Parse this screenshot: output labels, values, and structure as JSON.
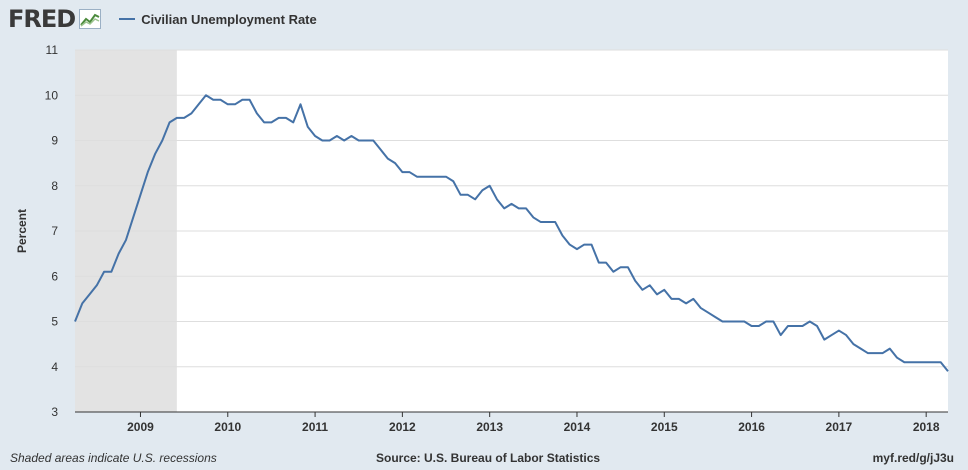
{
  "header": {
    "logo_text": "FRED",
    "logo_icon": "trend-chart-icon",
    "legend_label": "Civilian Unemployment Rate"
  },
  "footer": {
    "recession_note": "Shaded areas indicate U.S. recessions",
    "source": "Source: U.S. Bureau of Labor Statistics",
    "short_url": "myf.red/g/jJ3u"
  },
  "colors": {
    "line": "#4572a7",
    "recession": "#e3e3e3",
    "grid": "#dedede",
    "background": "#e1e9f0",
    "plot": "#ffffff"
  },
  "chart_data": {
    "type": "line",
    "title": "",
    "xlabel": "",
    "ylabel": "Percent",
    "ylim": [
      3,
      11
    ],
    "yticks": [
      3,
      4,
      5,
      6,
      7,
      8,
      9,
      10,
      11
    ],
    "xticks": [
      "2009",
      "2010",
      "2011",
      "2012",
      "2013",
      "2014",
      "2015",
      "2016",
      "2017",
      "2018"
    ],
    "x_start": "2008-04",
    "x_end": "2018-04",
    "grid": true,
    "legend_position": "top-left",
    "recession_shading": [
      {
        "start": "2008-04",
        "end": "2009-06"
      }
    ],
    "series": [
      {
        "name": "Civilian Unemployment Rate",
        "x": [
          "2008-04",
          "2008-05",
          "2008-06",
          "2008-07",
          "2008-08",
          "2008-09",
          "2008-10",
          "2008-11",
          "2008-12",
          "2009-01",
          "2009-02",
          "2009-03",
          "2009-04",
          "2009-05",
          "2009-06",
          "2009-07",
          "2009-08",
          "2009-09",
          "2009-10",
          "2009-11",
          "2009-12",
          "2010-01",
          "2010-02",
          "2010-03",
          "2010-04",
          "2010-05",
          "2010-06",
          "2010-07",
          "2010-08",
          "2010-09",
          "2010-10",
          "2010-11",
          "2010-12",
          "2011-01",
          "2011-02",
          "2011-03",
          "2011-04",
          "2011-05",
          "2011-06",
          "2011-07",
          "2011-08",
          "2011-09",
          "2011-10",
          "2011-11",
          "2011-12",
          "2012-01",
          "2012-02",
          "2012-03",
          "2012-04",
          "2012-05",
          "2012-06",
          "2012-07",
          "2012-08",
          "2012-09",
          "2012-10",
          "2012-11",
          "2012-12",
          "2013-01",
          "2013-02",
          "2013-03",
          "2013-04",
          "2013-05",
          "2013-06",
          "2013-07",
          "2013-08",
          "2013-09",
          "2013-10",
          "2013-11",
          "2013-12",
          "2014-01",
          "2014-02",
          "2014-03",
          "2014-04",
          "2014-05",
          "2014-06",
          "2014-07",
          "2014-08",
          "2014-09",
          "2014-10",
          "2014-11",
          "2014-12",
          "2015-01",
          "2015-02",
          "2015-03",
          "2015-04",
          "2015-05",
          "2015-06",
          "2015-07",
          "2015-08",
          "2015-09",
          "2015-10",
          "2015-11",
          "2015-12",
          "2016-01",
          "2016-02",
          "2016-03",
          "2016-04",
          "2016-05",
          "2016-06",
          "2016-07",
          "2016-08",
          "2016-09",
          "2016-10",
          "2016-11",
          "2016-12",
          "2017-01",
          "2017-02",
          "2017-03",
          "2017-04",
          "2017-05",
          "2017-06",
          "2017-07",
          "2017-08",
          "2017-09",
          "2017-10",
          "2017-11",
          "2017-12",
          "2018-01",
          "2018-02",
          "2018-03",
          "2018-04"
        ],
        "values": [
          5.0,
          5.4,
          5.6,
          5.8,
          6.1,
          6.1,
          6.5,
          6.8,
          7.3,
          7.8,
          8.3,
          8.7,
          9.0,
          9.4,
          9.5,
          9.5,
          9.6,
          9.8,
          10.0,
          9.9,
          9.9,
          9.8,
          9.8,
          9.9,
          9.9,
          9.6,
          9.4,
          9.4,
          9.5,
          9.5,
          9.4,
          9.8,
          9.3,
          9.1,
          9.0,
          9.0,
          9.1,
          9.0,
          9.1,
          9.0,
          9.0,
          9.0,
          8.8,
          8.6,
          8.5,
          8.3,
          8.3,
          8.2,
          8.2,
          8.2,
          8.2,
          8.2,
          8.1,
          7.8,
          7.8,
          7.7,
          7.9,
          8.0,
          7.7,
          7.5,
          7.6,
          7.5,
          7.5,
          7.3,
          7.2,
          7.2,
          7.2,
          6.9,
          6.7,
          6.6,
          6.7,
          6.7,
          6.3,
          6.3,
          6.1,
          6.2,
          6.2,
          5.9,
          5.7,
          5.8,
          5.6,
          5.7,
          5.5,
          5.5,
          5.4,
          5.5,
          5.3,
          5.2,
          5.1,
          5.0,
          5.0,
          5.0,
          5.0,
          4.9,
          4.9,
          5.0,
          5.0,
          4.7,
          4.9,
          4.9,
          4.9,
          5.0,
          4.9,
          4.6,
          4.7,
          4.8,
          4.7,
          4.5,
          4.4,
          4.3,
          4.3,
          4.3,
          4.4,
          4.2,
          4.1,
          4.1,
          4.1,
          4.1,
          4.1,
          4.1,
          3.9
        ]
      }
    ]
  }
}
